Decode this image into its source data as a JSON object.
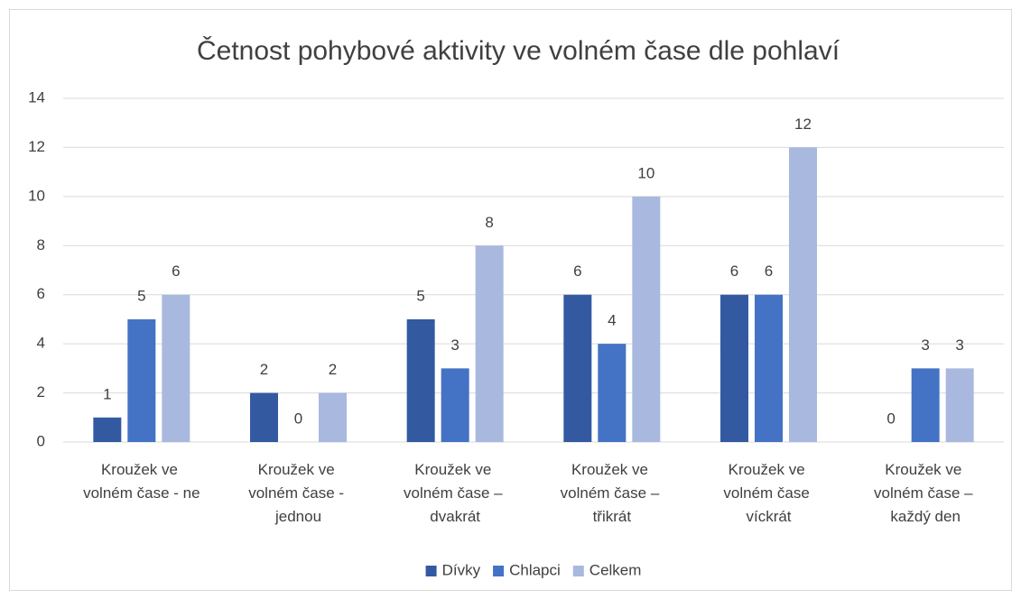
{
  "chart_data": {
    "type": "bar",
    "title": "Četnost pohybové aktivity ve volném čase dle pohlaví",
    "categories": [
      "Kroužek ve volném čase - ne",
      "Kroužek ve volném čase - jednou",
      "Kroužek ve volném čase – dvakrát",
      "Kroužek ve volném čase – třikrát",
      "Kroužek ve volném čase víckrát",
      "Kroužek ve volném čase – každý den"
    ],
    "series": [
      {
        "name": "Dívky",
        "color": "#335aa1",
        "values": [
          1,
          2,
          5,
          6,
          6,
          0
        ]
      },
      {
        "name": "Chlapci",
        "color": "#4472c4",
        "values": [
          5,
          0,
          3,
          4,
          6,
          3
        ]
      },
      {
        "name": "Celkem",
        "color": "#a9b8de",
        "values": [
          6,
          2,
          8,
          10,
          12,
          3
        ]
      }
    ],
    "ylim": [
      0,
      14
    ],
    "yticks": [
      0,
      2,
      4,
      6,
      8,
      10,
      12,
      14
    ],
    "grid": true,
    "legend": "bottom"
  }
}
